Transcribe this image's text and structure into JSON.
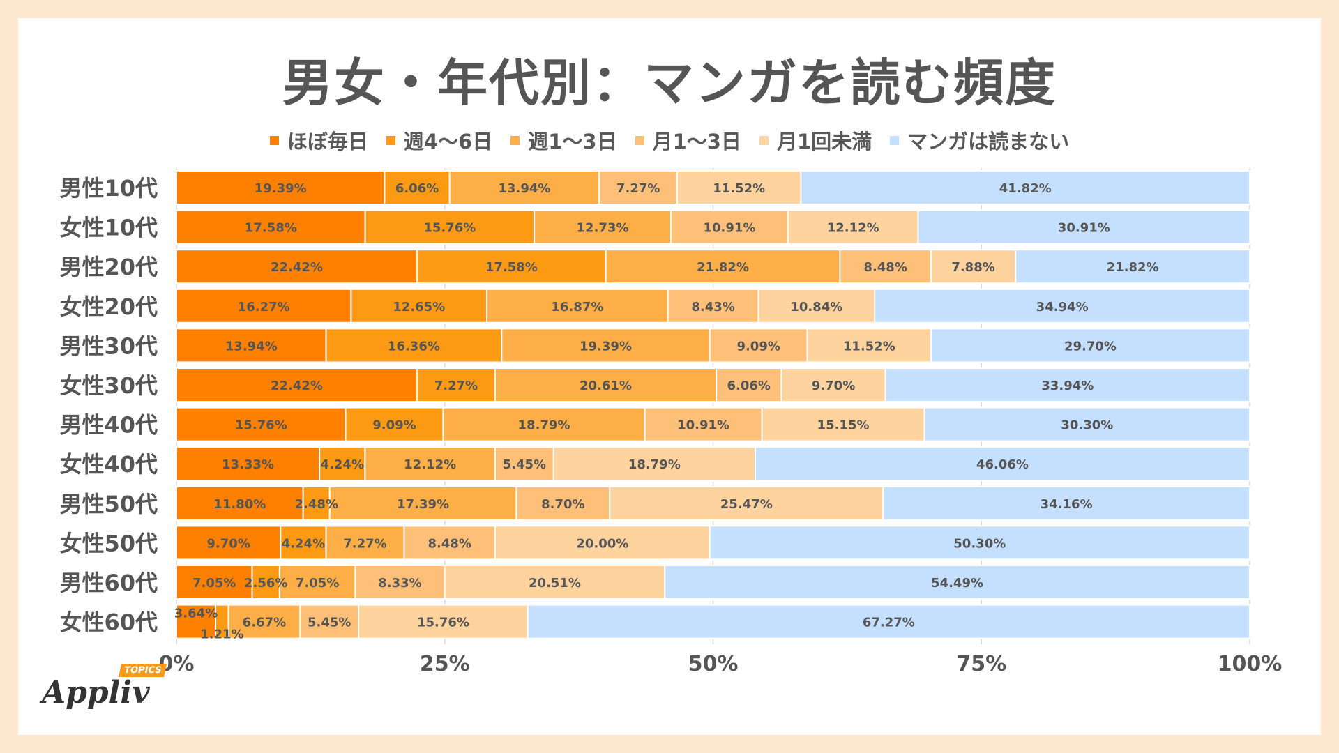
{
  "chart_data": {
    "type": "bar",
    "orientation": "horizontal-stacked-100",
    "title": "男女・年代別：マンガを読む頻度",
    "categories": [
      "男性10代",
      "女性10代",
      "男性20代",
      "女性20代",
      "男性30代",
      "女性30代",
      "男性40代",
      "女性40代",
      "男性50代",
      "女性50代",
      "男性60代",
      "女性60代"
    ],
    "series": [
      {
        "name": "ほぼ毎日",
        "color": "#fd8000",
        "values": [
          19.39,
          17.58,
          22.42,
          16.27,
          13.94,
          22.42,
          15.76,
          13.33,
          11.8,
          9.7,
          7.05,
          3.64
        ]
      },
      {
        "name": "週4〜6日",
        "color": "#fd9a13",
        "values": [
          6.06,
          15.76,
          17.58,
          12.65,
          16.36,
          7.27,
          9.09,
          4.24,
          2.48,
          4.24,
          2.56,
          1.21
        ]
      },
      {
        "name": "週1〜3日",
        "color": "#fdae46",
        "values": [
          13.94,
          12.73,
          21.82,
          16.87,
          19.39,
          20.61,
          18.79,
          12.12,
          17.39,
          7.27,
          7.05,
          6.67
        ]
      },
      {
        "name": "月1〜3日",
        "color": "#fec078",
        "values": [
          7.27,
          10.91,
          8.48,
          8.43,
          9.09,
          6.06,
          10.91,
          5.45,
          8.7,
          8.48,
          8.33,
          5.45
        ]
      },
      {
        "name": "月1回未満",
        "color": "#fed39e",
        "values": [
          11.52,
          12.12,
          7.88,
          10.84,
          11.52,
          9.7,
          15.15,
          18.79,
          25.47,
          20.0,
          20.51,
          15.76
        ]
      },
      {
        "name": "マンガは読まない",
        "color": "#c5e0ff",
        "values": [
          41.82,
          30.91,
          21.82,
          34.94,
          29.7,
          33.94,
          30.3,
          46.06,
          34.16,
          50.3,
          54.49,
          67.27
        ]
      }
    ],
    "xlim": [
      0,
      100
    ],
    "xticks": [
      "0%",
      "25%",
      "50%",
      "75%",
      "100%"
    ],
    "label_format": "percent-2dp"
  },
  "branding": {
    "logo_text": "Appliv",
    "logo_badge": "TOPICS"
  }
}
